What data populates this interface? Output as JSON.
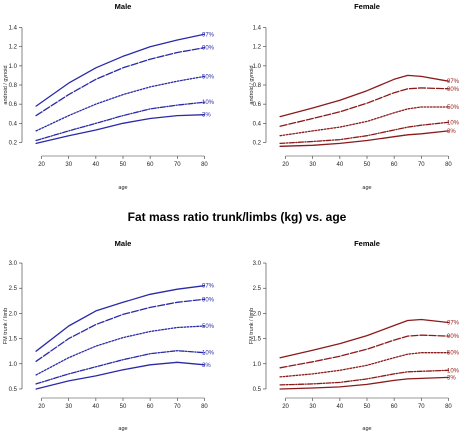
{
  "chart_data": [
    {
      "type": "line",
      "title": "Male",
      "xlabel": "age",
      "ylabel": "android / gynoid",
      "xlim": [
        15,
        85
      ],
      "ylim": [
        0.1,
        1.5
      ],
      "xticks": [
        20,
        30,
        40,
        50,
        60,
        70,
        80
      ],
      "yticks": [
        0.2,
        0.4,
        0.6,
        0.8,
        1.0,
        1.2,
        1.4
      ],
      "tick_labels_y": [
        "0.2",
        "0.4",
        "0.6",
        "0.8",
        "1.0",
        "1.2",
        "1.4"
      ],
      "color": "#2a2aa8",
      "x": [
        18,
        30,
        40,
        50,
        60,
        70,
        80
      ],
      "series": [
        {
          "name": "97%",
          "dash": "solid",
          "values": [
            0.58,
            0.82,
            0.98,
            1.1,
            1.2,
            1.27,
            1.33
          ]
        },
        {
          "name": "90%",
          "dash": "longdash",
          "values": [
            0.48,
            0.7,
            0.86,
            0.98,
            1.07,
            1.14,
            1.19
          ]
        },
        {
          "name": "50%",
          "dash": "dotted",
          "values": [
            0.32,
            0.48,
            0.6,
            0.7,
            0.78,
            0.84,
            0.89
          ]
        },
        {
          "name": "10%",
          "dash": "dashdot",
          "values": [
            0.22,
            0.32,
            0.4,
            0.48,
            0.55,
            0.59,
            0.62
          ]
        },
        {
          "name": "3%",
          "dash": "solid",
          "values": [
            0.19,
            0.27,
            0.33,
            0.4,
            0.45,
            0.48,
            0.49
          ]
        }
      ]
    },
    {
      "type": "line",
      "title": "Female",
      "xlabel": "age",
      "ylabel": "android / gynoid",
      "xlim": [
        15,
        85
      ],
      "ylim": [
        0.1,
        1.5
      ],
      "xticks": [
        20,
        30,
        40,
        50,
        60,
        70,
        80
      ],
      "yticks": [
        0.2,
        0.4,
        0.6,
        0.8,
        1.0,
        1.2,
        1.4
      ],
      "tick_labels_y": [
        "0.2",
        "0.4",
        "0.6",
        "0.8",
        "1.0",
        "1.2",
        "1.4"
      ],
      "color": "#8b1a1a",
      "x": [
        18,
        30,
        40,
        50,
        60,
        65,
        70,
        80
      ],
      "series": [
        {
          "name": "97%",
          "dash": "solid",
          "values": [
            0.47,
            0.56,
            0.64,
            0.74,
            0.86,
            0.9,
            0.89,
            0.84
          ]
        },
        {
          "name": "90%",
          "dash": "longdash",
          "values": [
            0.37,
            0.45,
            0.52,
            0.61,
            0.72,
            0.76,
            0.77,
            0.76
          ]
        },
        {
          "name": "50%",
          "dash": "dotted",
          "values": [
            0.27,
            0.32,
            0.36,
            0.42,
            0.51,
            0.55,
            0.57,
            0.57
          ]
        },
        {
          "name": "10%",
          "dash": "dashdot",
          "values": [
            0.19,
            0.21,
            0.23,
            0.27,
            0.33,
            0.36,
            0.38,
            0.41
          ]
        },
        {
          "name": "3%",
          "dash": "solid",
          "values": [
            0.16,
            0.17,
            0.19,
            0.22,
            0.26,
            0.28,
            0.29,
            0.32
          ]
        }
      ]
    },
    {
      "type": "line",
      "title": "Male",
      "xlabel": "age",
      "ylabel": "FM trunk / limb",
      "xlim": [
        15,
        85
      ],
      "ylim": [
        0.4,
        3.1
      ],
      "xticks": [
        20,
        30,
        40,
        50,
        60,
        70,
        80
      ],
      "yticks": [
        0.5,
        1.0,
        1.5,
        2.0,
        2.5,
        3.0
      ],
      "tick_labels_y": [
        "0.5",
        "1.0",
        "1.5",
        "2.0",
        "2.5",
        "3.0"
      ],
      "color": "#2a2aa8",
      "x": [
        18,
        30,
        40,
        50,
        60,
        70,
        80
      ],
      "series": [
        {
          "name": "97%",
          "dash": "solid",
          "values": [
            1.25,
            1.75,
            2.05,
            2.22,
            2.38,
            2.48,
            2.55
          ]
        },
        {
          "name": "90%",
          "dash": "longdash",
          "values": [
            1.05,
            1.5,
            1.78,
            1.98,
            2.12,
            2.22,
            2.28
          ]
        },
        {
          "name": "50%",
          "dash": "dotted",
          "values": [
            0.78,
            1.12,
            1.35,
            1.52,
            1.64,
            1.72,
            1.75
          ]
        },
        {
          "name": "10%",
          "dash": "dashdot",
          "values": [
            0.6,
            0.8,
            0.94,
            1.08,
            1.2,
            1.26,
            1.22
          ]
        },
        {
          "name": "3%",
          "dash": "solid",
          "values": [
            0.5,
            0.66,
            0.76,
            0.88,
            0.98,
            1.03,
            0.98
          ]
        }
      ]
    },
    {
      "type": "line",
      "title": "Female",
      "xlabel": "age",
      "ylabel": "FM trunk / limb",
      "xlim": [
        15,
        85
      ],
      "ylim": [
        0.4,
        3.1
      ],
      "xticks": [
        20,
        30,
        40,
        50,
        60,
        70,
        80
      ],
      "yticks": [
        0.5,
        1.0,
        1.5,
        2.0,
        2.5,
        3.0
      ],
      "tick_labels_y": [
        "0.5",
        "1.0",
        "1.5",
        "2.0",
        "2.5",
        "3.0"
      ],
      "color": "#8b1a1a",
      "x": [
        18,
        30,
        40,
        50,
        60,
        65,
        70,
        80
      ],
      "series": [
        {
          "name": "97%",
          "dash": "solid",
          "values": [
            1.12,
            1.27,
            1.4,
            1.56,
            1.76,
            1.86,
            1.88,
            1.82
          ]
        },
        {
          "name": "90%",
          "dash": "longdash",
          "values": [
            0.92,
            1.04,
            1.15,
            1.29,
            1.47,
            1.55,
            1.57,
            1.55
          ]
        },
        {
          "name": "50%",
          "dash": "dotted",
          "values": [
            0.74,
            0.8,
            0.87,
            0.97,
            1.12,
            1.19,
            1.22,
            1.22
          ]
        },
        {
          "name": "10%",
          "dash": "dashdot",
          "values": [
            0.58,
            0.6,
            0.63,
            0.7,
            0.8,
            0.84,
            0.85,
            0.87
          ]
        },
        {
          "name": "3%",
          "dash": "solid",
          "values": [
            0.5,
            0.52,
            0.54,
            0.59,
            0.67,
            0.7,
            0.71,
            0.73
          ]
        }
      ]
    }
  ],
  "section_titles": {
    "fat_mass_ratio": "Fat mass ratio trunk/limbs (kg) vs. age"
  }
}
